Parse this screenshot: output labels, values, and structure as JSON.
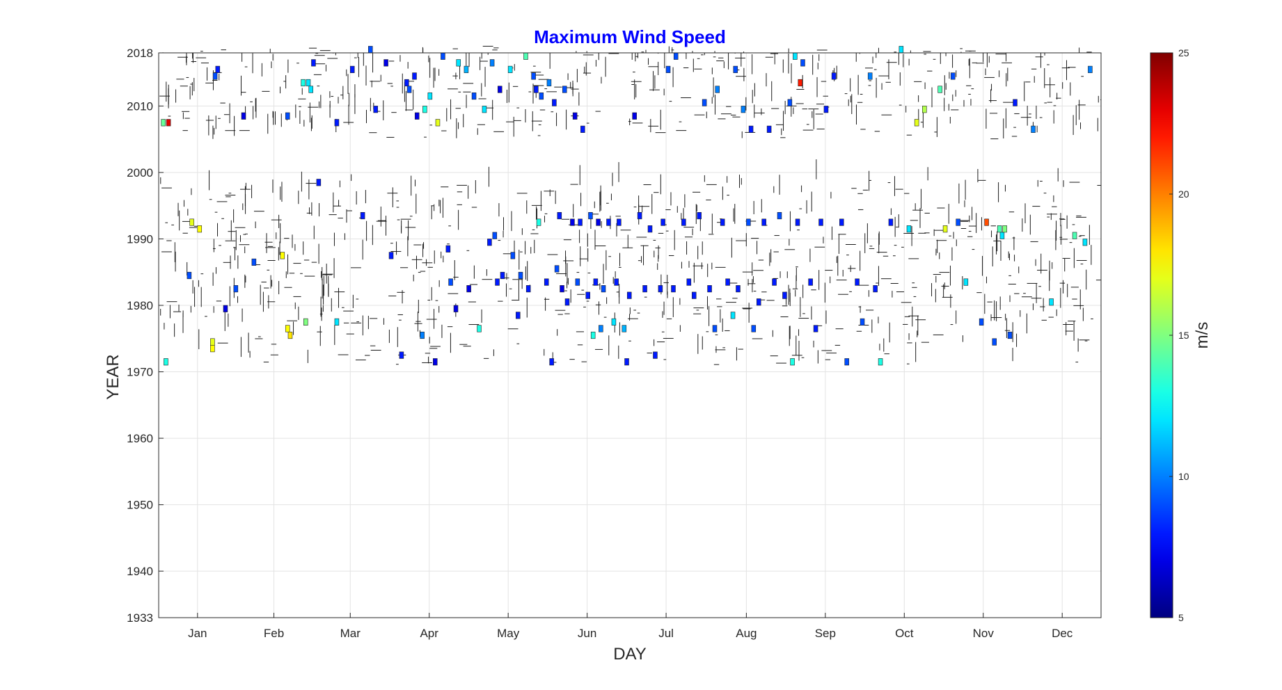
{
  "chart_data": {
    "type": "heatmap",
    "title": "Maximum Wind Speed",
    "title_color": "#0000ff",
    "xlabel": "DAY",
    "ylabel": "YEAR",
    "colorbar_label": "m/s",
    "x_ticks": [
      "Jan",
      "Feb",
      "Mar",
      "Apr",
      "May",
      "Jun",
      "Jul",
      "Aug",
      "Sep",
      "Oct",
      "Nov",
      "Dec"
    ],
    "x_tick_days": [
      16,
      45.5,
      75,
      105.5,
      136,
      166.5,
      197,
      228,
      258.5,
      289,
      319.5,
      350
    ],
    "xlim": [
      1,
      365
    ],
    "y_ticks": [
      1933,
      1940,
      1950,
      1960,
      1970,
      1980,
      1990,
      2000,
      2010,
      2018
    ],
    "ylim": [
      1933,
      2018
    ],
    "colorbar_ticks": [
      5,
      10,
      15,
      20,
      25
    ],
    "clim": [
      5,
      25
    ],
    "colormap": "jet",
    "grid": true,
    "data_years": [
      [
        1971,
        1998
      ],
      [
        2005,
        2018
      ]
    ],
    "cells": [
      [
        2,
        2007,
        14.5
      ],
      [
        4,
        2007,
        23
      ],
      [
        3,
        1971,
        13
      ],
      [
        13,
        1992,
        17
      ],
      [
        16,
        1991,
        17.5
      ],
      [
        12,
        1984,
        9
      ],
      [
        21,
        1974,
        17
      ],
      [
        21,
        1973,
        17.5
      ],
      [
        26,
        1979,
        7
      ],
      [
        30,
        1982,
        9
      ],
      [
        23,
        2015,
        8
      ],
      [
        22,
        2014,
        9
      ],
      [
        33,
        2008,
        7
      ],
      [
        37,
        1986,
        9
      ],
      [
        48,
        1987,
        17.5
      ],
      [
        50,
        1976,
        17.5
      ],
      [
        51,
        1975,
        18
      ],
      [
        57,
        1977,
        15
      ],
      [
        50,
        2008,
        9
      ],
      [
        56,
        2013,
        13
      ],
      [
        58,
        2013,
        12
      ],
      [
        59,
        2012,
        12
      ],
      [
        62,
        1998,
        8
      ],
      [
        60,
        2016,
        8
      ],
      [
        69,
        1977,
        12
      ],
      [
        69,
        2007,
        8
      ],
      [
        75,
        2015,
        8
      ],
      [
        79,
        1993,
        8
      ],
      [
        82,
        2018,
        9
      ],
      [
        84,
        2009,
        8
      ],
      [
        88,
        2016,
        7
      ],
      [
        90,
        1987,
        8
      ],
      [
        94,
        1972,
        8
      ],
      [
        96,
        2013,
        8
      ],
      [
        97,
        2012,
        9
      ],
      [
        99,
        2014,
        8
      ],
      [
        100,
        2008,
        7
      ],
      [
        102,
        1975,
        10
      ],
      [
        103,
        2009,
        13
      ],
      [
        105,
        2011,
        12
      ],
      [
        107,
        1971,
        7
      ],
      [
        108,
        2007,
        17
      ],
      [
        110,
        2017,
        9
      ],
      [
        112,
        1988,
        8
      ],
      [
        113,
        1983,
        9
      ],
      [
        115,
        1979,
        7
      ],
      [
        116,
        2016,
        12
      ],
      [
        119,
        2015,
        11
      ],
      [
        120,
        1982,
        7
      ],
      [
        122,
        2011,
        9
      ],
      [
        124,
        1976,
        13
      ],
      [
        126,
        2009,
        12
      ],
      [
        128,
        1989,
        8
      ],
      [
        129,
        2016,
        10
      ],
      [
        130,
        1990,
        9
      ],
      [
        131,
        1983,
        8
      ],
      [
        132,
        2012,
        7
      ],
      [
        133,
        1984,
        8
      ],
      [
        136,
        2015,
        12
      ],
      [
        137,
        1987,
        9
      ],
      [
        139,
        1978,
        8
      ],
      [
        140,
        1984,
        9
      ],
      [
        142,
        2017,
        14
      ],
      [
        143,
        1982,
        8
      ],
      [
        145,
        2014,
        9
      ],
      [
        146,
        2012,
        8
      ],
      [
        147,
        1992,
        13
      ],
      [
        148,
        2011,
        9
      ],
      [
        150,
        1983,
        8
      ],
      [
        151,
        2013,
        10
      ],
      [
        152,
        1971,
        8
      ],
      [
        153,
        2010,
        8
      ],
      [
        154,
        1985,
        9
      ],
      [
        155,
        1993,
        8
      ],
      [
        156,
        1982,
        7
      ],
      [
        157,
        2012,
        9
      ],
      [
        158,
        1980,
        8
      ],
      [
        160,
        1992,
        7
      ],
      [
        161,
        2008,
        7
      ],
      [
        162,
        1983,
        9
      ],
      [
        163,
        1992,
        8
      ],
      [
        164,
        2006,
        8
      ],
      [
        166,
        1981,
        8
      ],
      [
        167,
        1993,
        9
      ],
      [
        168,
        1975,
        13
      ],
      [
        169,
        1983,
        8
      ],
      [
        170,
        1992,
        7
      ],
      [
        171,
        1976,
        10
      ],
      [
        172,
        1982,
        9
      ],
      [
        174,
        1992,
        8
      ],
      [
        176,
        1977,
        12
      ],
      [
        177,
        1983,
        8
      ],
      [
        178,
        1992,
        8
      ],
      [
        180,
        1976,
        11
      ],
      [
        181,
        1971,
        8
      ],
      [
        182,
        1981,
        8
      ],
      [
        184,
        2008,
        7
      ],
      [
        186,
        1993,
        8
      ],
      [
        188,
        1982,
        8
      ],
      [
        190,
        1991,
        8
      ],
      [
        192,
        1972,
        8
      ],
      [
        194,
        1982,
        8
      ],
      [
        195,
        1992,
        8
      ],
      [
        197,
        2015,
        9
      ],
      [
        199,
        1982,
        8
      ],
      [
        200,
        2017,
        9
      ],
      [
        203,
        1992,
        8
      ],
      [
        205,
        1983,
        8
      ],
      [
        207,
        1981,
        8
      ],
      [
        209,
        1993,
        8
      ],
      [
        211,
        2010,
        9
      ],
      [
        213,
        1982,
        8
      ],
      [
        215,
        1976,
        9
      ],
      [
        216,
        2012,
        10
      ],
      [
        218,
        1992,
        8
      ],
      [
        220,
        1983,
        8
      ],
      [
        222,
        1978,
        12
      ],
      [
        223,
        2015,
        9
      ],
      [
        224,
        1982,
        8
      ],
      [
        226,
        2009,
        10
      ],
      [
        228,
        1992,
        9
      ],
      [
        229,
        2006,
        8
      ],
      [
        230,
        1976,
        9
      ],
      [
        232,
        1980,
        8
      ],
      [
        234,
        1992,
        8
      ],
      [
        236,
        2006,
        8
      ],
      [
        238,
        1983,
        8
      ],
      [
        240,
        1993,
        9
      ],
      [
        242,
        1981,
        8
      ],
      [
        244,
        2010,
        9
      ],
      [
        245,
        1971,
        13
      ],
      [
        246,
        2017,
        12
      ],
      [
        247,
        1992,
        8
      ],
      [
        248,
        2013,
        22
      ],
      [
        249,
        2016,
        9
      ],
      [
        252,
        1983,
        8
      ],
      [
        254,
        1976,
        8
      ],
      [
        256,
        1992,
        8
      ],
      [
        258,
        2009,
        8
      ],
      [
        261,
        2014,
        8
      ],
      [
        264,
        1992,
        8
      ],
      [
        266,
        1971,
        9
      ],
      [
        270,
        1983,
        8
      ],
      [
        272,
        1977,
        9
      ],
      [
        275,
        2014,
        10
      ],
      [
        277,
        1982,
        8
      ],
      [
        279,
        1971,
        13
      ],
      [
        283,
        1992,
        8
      ],
      [
        287,
        2018,
        12
      ],
      [
        290,
        1991,
        12
      ],
      [
        293,
        2007,
        17
      ],
      [
        296,
        2009,
        16
      ],
      [
        302,
        2012,
        14
      ],
      [
        304,
        1991,
        17
      ],
      [
        307,
        2014,
        9
      ],
      [
        309,
        1992,
        9
      ],
      [
        312,
        1983,
        12
      ],
      [
        318,
        1977,
        9
      ],
      [
        320,
        1992,
        21
      ],
      [
        323,
        1974,
        9
      ],
      [
        325,
        1991,
        14
      ],
      [
        326,
        1990,
        12
      ],
      [
        327,
        1991,
        15
      ],
      [
        329,
        1975,
        9
      ],
      [
        331,
        2010,
        8
      ],
      [
        338,
        2006,
        10
      ],
      [
        345,
        1980,
        12
      ],
      [
        354,
        1990,
        14
      ],
      [
        358,
        1989,
        12
      ],
      [
        360,
        2015,
        10
      ]
    ]
  }
}
